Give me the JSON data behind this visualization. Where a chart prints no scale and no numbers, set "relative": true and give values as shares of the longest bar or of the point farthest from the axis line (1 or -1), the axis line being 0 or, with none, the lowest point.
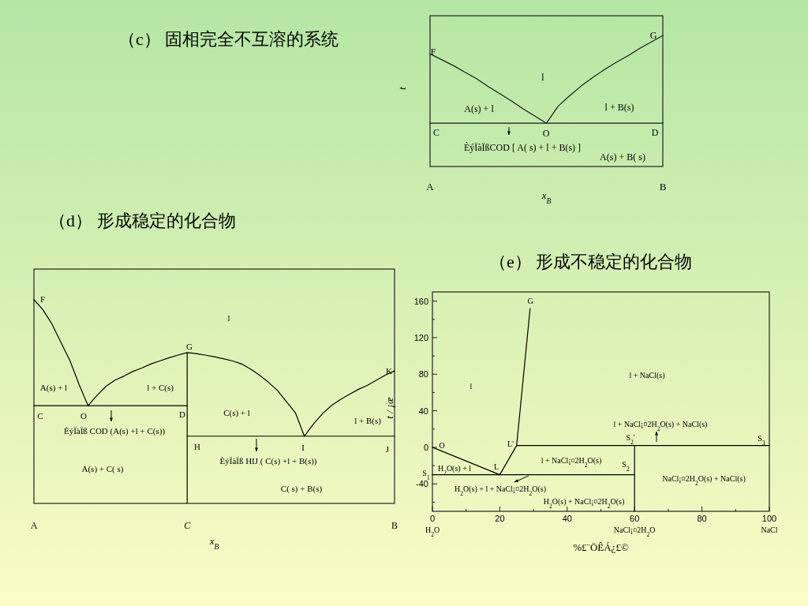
{
  "chart_data": [
    {
      "type": "line",
      "title": "（c） 固相完全不互溶的系统",
      "xlabel": "x$_{B}$",
      "ylabel": "t",
      "relative": true,
      "categories": [
        "A",
        null,
        null,
        null,
        null,
        null,
        null,
        null,
        null,
        null,
        null,
        null,
        null,
        null,
        null,
        null,
        null,
        null,
        null,
        null,
        "B"
      ],
      "series": [
        {
          "color": "#1a1a1a",
          "values": [
            0.86,
            0.815,
            0.77,
            0.72,
            0.67,
            0.61,
            0.555,
            0.5,
            0.44,
            0.385,
            0.33,
            0.46,
            0.54,
            0.615,
            0.68,
            0.74,
            0.795,
            0.845,
            0.9,
            0.95,
            1
          ]
        },
        {
          "color": "#1a1a1a",
          "values": [
            0.33,
            0.33,
            0.33,
            0.33,
            0.33,
            0.33,
            0.33,
            0.33,
            0.33,
            0.33,
            0.33,
            0.33,
            0.33,
            0.33,
            0.33,
            0.33,
            0.33,
            0.33,
            0.33,
            0.33,
            0.33
          ]
        }
      ],
      "annotations": [
        "F",
        "G",
        "l",
        "A(s) + l",
        "l + B(s)",
        "C",
        "O",
        "D",
        "ÈýÏàÏßCOD [ A( s) + l +  B(s) ]",
        "A(s) + B( s)"
      ]
    },
    {
      "type": "line",
      "title": "（d） 形成稳定的化合物",
      "xlabel": "x$_{B}$",
      "ylabel": "t / ¡æ",
      "relative": true,
      "categories": [
        "A",
        null,
        null,
        null,
        null,
        null,
        null,
        null,
        null,
        null,
        null,
        null,
        null,
        null,
        null,
        null,
        null,
        "C",
        null,
        null,
        null,
        null,
        null,
        null,
        null,
        null,
        null,
        null,
        null,
        null,
        null,
        null,
        null,
        null,
        null,
        null,
        null,
        null,
        null,
        null,
        "B"
      ],
      "series": [
        {
          "color": "#000000",
          "values": [
            1,
            0.95,
            0.88,
            0.79,
            0.7,
            0.585,
            0.48,
            0.53,
            0.575,
            0.605,
            0.625,
            0.648,
            0.665,
            0.685,
            0.7,
            0.715,
            0.728,
            0.74,
            0.735,
            0.728,
            0.72,
            0.71,
            0.7,
            0.685,
            0.66,
            0.63,
            0.595,
            0.555,
            0.5,
            0.445,
            0.33,
            0.39,
            0.44,
            0.48,
            0.51,
            0.535,
            0.56,
            0.58,
            0.605,
            0.63,
            0.65
          ]
        },
        {
          "color": "#000000",
          "values": [
            0.48,
            0.48,
            0.48,
            0.48,
            0.48,
            0.48,
            0.48,
            0.48,
            0.48,
            0.48,
            0.48,
            0.48,
            0.48,
            0.48,
            0.48,
            0.48,
            0.48,
            0.48,
            null,
            null,
            null,
            null,
            null,
            null,
            null,
            null,
            null,
            null,
            null,
            null,
            null,
            null,
            null,
            null,
            null,
            null,
            null,
            null,
            null,
            null,
            null
          ]
        },
        {
          "color": "#000000",
          "values": [
            null,
            null,
            null,
            null,
            null,
            null,
            null,
            null,
            null,
            null,
            null,
            null,
            null,
            null,
            null,
            null,
            null,
            0.33,
            0.33,
            0.33,
            0.33,
            0.33,
            0.33,
            0.33,
            0.33,
            0.33,
            0.33,
            0.33,
            0.33,
            0.33,
            0.33,
            0.33,
            0.33,
            0.33,
            0.33,
            0.33,
            0.33,
            0.33,
            0.33,
            0.33,
            0.33
          ]
        },
        {
          "type": "bar",
          "color": "#000000",
          "values": [
            null,
            null,
            null,
            null,
            null,
            null,
            null,
            null,
            null,
            null,
            null,
            null,
            null,
            null,
            null,
            null,
            null,
            0.74,
            null,
            null,
            null,
            null,
            null,
            null,
            null,
            null,
            null,
            null,
            null,
            null,
            null,
            null,
            null,
            null,
            null,
            null,
            null,
            null,
            null,
            null,
            null
          ]
        }
      ],
      "annotations": [
        "F",
        "l",
        "G",
        "K",
        "A(s) + l",
        "l + C(s)",
        "C",
        "O",
        "D",
        "C(s) + l",
        "l + B(s)",
        "ÈýÏàÏß COD (A(s) +l + C(s))",
        "H",
        "I",
        "J",
        "ÈýÏàÏß HIJ ( C(s) +l + B(s))",
        "A(s) + C( s)",
        "C( s) + B(s)"
      ]
    },
    {
      "type": "line",
      "title": "（e） 形成不稳定的化合物",
      "xlabel": "%£¨ÖÊÁ¿£©",
      "xlim": [
        0,
        100
      ],
      "ylim": [
        -70,
        170
      ],
      "xticks": [
        {
          "value": 0,
          "label": "0\nH$_{2}$O"
        },
        {
          "value": 10,
          "label": null
        },
        20,
        {
          "value": 30,
          "label": null
        },
        40,
        {
          "value": 50,
          "label": null
        },
        {
          "value": 60,
          "label": "60\nNaCl¡¤2H$_{2}$O"
        },
        {
          "value": 70,
          "label": null
        },
        80,
        {
          "value": 90,
          "label": null
        },
        {
          "value": 100,
          "label": "100\nNaCl"
        }
      ],
      "yticks": [
        {
          "value": -60,
          "label": null
        },
        -40,
        {
          "value": -20,
          "label": null
        },
        0,
        {
          "value": 20,
          "label": null
        },
        40,
        {
          "value": 60,
          "label": null
        },
        80,
        {
          "value": 100,
          "label": null
        },
        120,
        {
          "value": 140,
          "label": null
        },
        160
      ],
      "series": [
        {
          "color": "#000000",
          "x": [
            0,
            20,
            25,
            29
          ],
          "values": [
            0,
            -30,
            2,
            152
          ]
        },
        {
          "color": "#000000",
          "x": [
            25,
            100
          ],
          "values": [
            2,
            2
          ]
        },
        {
          "color": "#000000",
          "x": [
            0,
            60
          ],
          "values": [
            -30,
            -30
          ]
        },
        {
          "color": "#000000",
          "x": [
            60,
            60
          ],
          "values": [
            -70,
            2
          ]
        }
      ],
      "annotations": [
        "G",
        "l",
        "l + NaCl(s)",
        "O",
        "L'",
        "L",
        "l + NaCl¡¤2H$_{2}$O(s) + NaCl(s)",
        "S$_{2}$'",
        "S$_{3}$",
        "l + NaCl¡¤2H$_{2}$O(s)",
        "S$_{2}$",
        "H$_{2}$O(s) + l",
        "NaCl¡¤2H$_{2}$O(s) + NaCl(s)",
        "H$_{2}$O(s) + l + NaCl¡¤2H$_{2}$O(s)",
        "H$_{2}$O(s) + NaCl¡¤2H$_{2}$O(s)",
        "S$_{1}$"
      ]
    }
  ]
}
